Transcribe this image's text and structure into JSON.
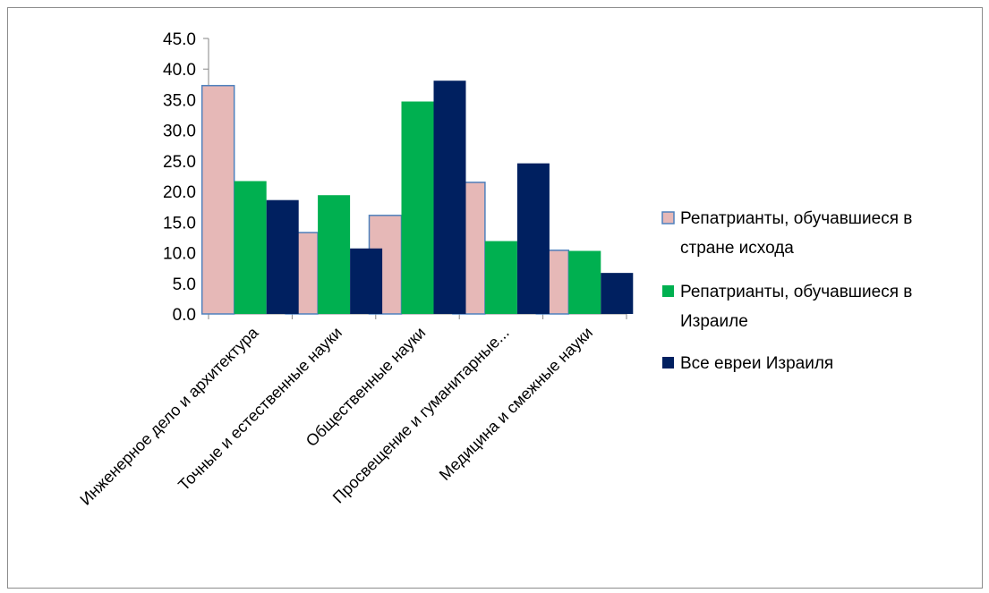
{
  "chart_data": {
    "type": "bar",
    "categories": [
      "Инженерное дело и архитектура",
      "Точные и естественные науки",
      "Общественные науки",
      "Просвещение и гуманитарные...",
      "Медицина и смежные науки"
    ],
    "series": [
      {
        "name": "Репатрианты, обучавшиеся в стране исхода",
        "legend_lines": [
          "Репатрианты, обучавшиеся в",
          "стране исхода"
        ],
        "values": [
          37.3,
          13.3,
          16.1,
          21.5,
          10.4
        ],
        "color": "#e6b8b7",
        "stroke": "#4f81bd"
      },
      {
        "name": "Репатрианты, обучавшиеся в Израиле",
        "legend_lines": [
          "Репатрианты, обучавшиеся в",
          "Израиле"
        ],
        "values": [
          21.7,
          19.4,
          34.7,
          11.9,
          10.3
        ],
        "color": "#00b050",
        "stroke": "none"
      },
      {
        "name": "Все евреи Израиля",
        "legend_lines": [
          "Все евреи Израиля"
        ],
        "values": [
          18.6,
          10.7,
          38.1,
          24.6,
          6.7
        ],
        "color": "#002060",
        "stroke": "none"
      }
    ],
    "ylim": [
      0,
      45
    ],
    "yticks": [
      "0.0",
      "5.0",
      "10.0",
      "15.0",
      "20.0",
      "25.0",
      "30.0",
      "35.0",
      "40.0",
      "45.0"
    ],
    "legend_position": "right",
    "grid": false
  }
}
